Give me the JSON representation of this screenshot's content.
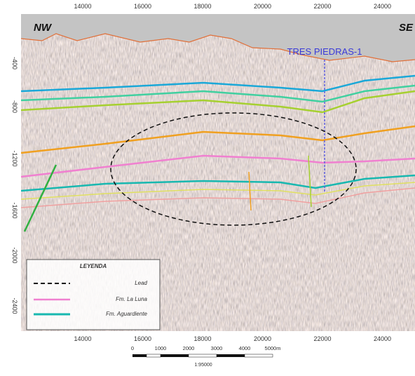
{
  "section": {
    "left_label": "NW",
    "right_label": "SE",
    "well": "TRES PIEDRAS-1"
  },
  "top_axis": [
    "14000",
    "16000",
    "18000",
    "20000",
    "22000",
    "24000"
  ],
  "bottom_axis": [
    "14000",
    "16000",
    "18000",
    "20000",
    "22000",
    "24000"
  ],
  "left_axis": [
    "-400",
    "-800",
    "-1200",
    "-1600",
    "-2000",
    "-2400"
  ],
  "legend": {
    "title": "LEYENDA",
    "items": [
      "Lead",
      "Fm. La Luna",
      "Fm. Aguardiente"
    ]
  },
  "scale": {
    "labels": [
      "0",
      "1000",
      "2000",
      "3000",
      "4000",
      "5000m"
    ],
    "ratio": "1:95000"
  }
}
